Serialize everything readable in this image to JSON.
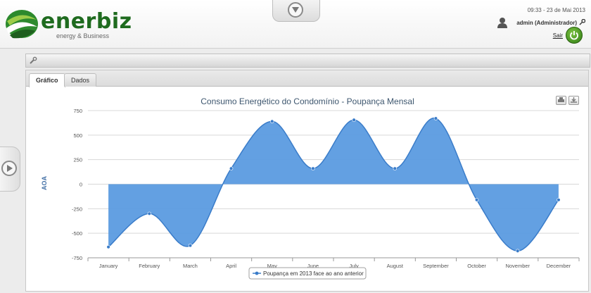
{
  "brand": {
    "name": "enerbiz",
    "tagline": "energy & Business",
    "color": "#1f6b1f"
  },
  "header": {
    "datetime": "09:33 - 23 de Mai 2013",
    "user": "admin (Administrador)",
    "logout_label": "Sair"
  },
  "tabs": [
    {
      "label": "Gráfico",
      "active": true
    },
    {
      "label": "Dados",
      "active": false
    }
  ],
  "icons": {
    "collapse_top": "triangle-down-icon",
    "expand_side": "play-icon",
    "toolbar": "wrench-icon",
    "user": "user-icon",
    "key": "key-icon",
    "power": "power-icon",
    "print": "print-icon",
    "download": "download-icon"
  },
  "colors": {
    "series": "#4a90e2",
    "series_fill": "#5b9be0",
    "axis_title": "#4572a7"
  },
  "chart_data": {
    "type": "area",
    "title": "Consumo Energético do Condomínio - Poupança Mensal",
    "ylabel": "AOA",
    "xlabel": "",
    "ylim": [
      -750,
      750
    ],
    "yticks": [
      750,
      500,
      250,
      0,
      -250,
      -500,
      -750
    ],
    "categories": [
      "January",
      "February",
      "March",
      "April",
      "May",
      "June",
      "July",
      "August",
      "September",
      "October",
      "November",
      "December"
    ],
    "series": [
      {
        "name": "Poupança em 2013 face ao ano anterior",
        "values": [
          -640,
          -300,
          -625,
          160,
          640,
          160,
          655,
          160,
          670,
          -160,
          -680,
          -160
        ]
      }
    ],
    "grid": true,
    "legend": "bottom-center"
  }
}
